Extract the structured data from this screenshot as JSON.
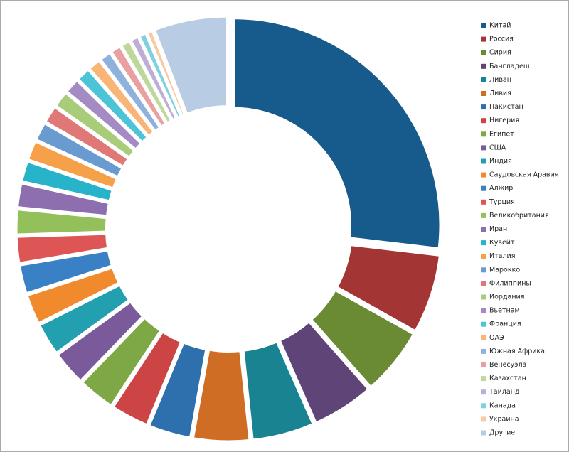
{
  "chart_data": {
    "type": "pie",
    "categories": [
      "Китай",
      "Россия",
      "Сирия",
      "Бангладеш",
      "Ливан",
      "Ливия",
      "Пакистан",
      "Нигерия",
      "Египет",
      "США",
      "Индия",
      "Саудовская Аравия",
      "Алжир",
      "Турция",
      "Великобритания",
      "Иран",
      "Кувейт",
      "Италия",
      "Марокко",
      "Филиппины",
      "Иордания",
      "Вьетнам",
      "Франция",
      "ОАЭ",
      "Южная Африка",
      "Венесуэла",
      "Казахстан",
      "Таиланд",
      "Канада",
      "Украина",
      "Другие"
    ],
    "values": [
      30,
      7,
      6,
      5.5,
      5.5,
      5,
      3.8,
      3.4,
      3.3,
      3.1,
      2.9,
      2.7,
      2.6,
      2.4,
      2.3,
      2.2,
      1.9,
      1.8,
      1.7,
      1.6,
      1.5,
      1.4,
      1.3,
      1.2,
      1.1,
      1,
      0.9,
      0.8,
      0.7,
      0.6,
      6.5
    ],
    "colors": [
      "#175a8c",
      "#a33535",
      "#6a8a34",
      "#5f4478",
      "#1a8391",
      "#d06d25",
      "#2e6fad",
      "#cc4444",
      "#7ea745",
      "#7a5a9a",
      "#22a0b0",
      "#f08a2c",
      "#3a80c4",
      "#dd5555",
      "#93c05a",
      "#8d6fb0",
      "#27b3c9",
      "#f6a04a",
      "#6a9bd0",
      "#e07878",
      "#a8cc7a",
      "#a48bc4",
      "#4cc3d6",
      "#f8b577",
      "#8fb2dc",
      "#e9a0a0",
      "#bed89c",
      "#bcaed6",
      "#7fd0e0",
      "#fac9a0",
      "#b8cce4"
    ],
    "inner_radius_ratio": 0.56
  }
}
